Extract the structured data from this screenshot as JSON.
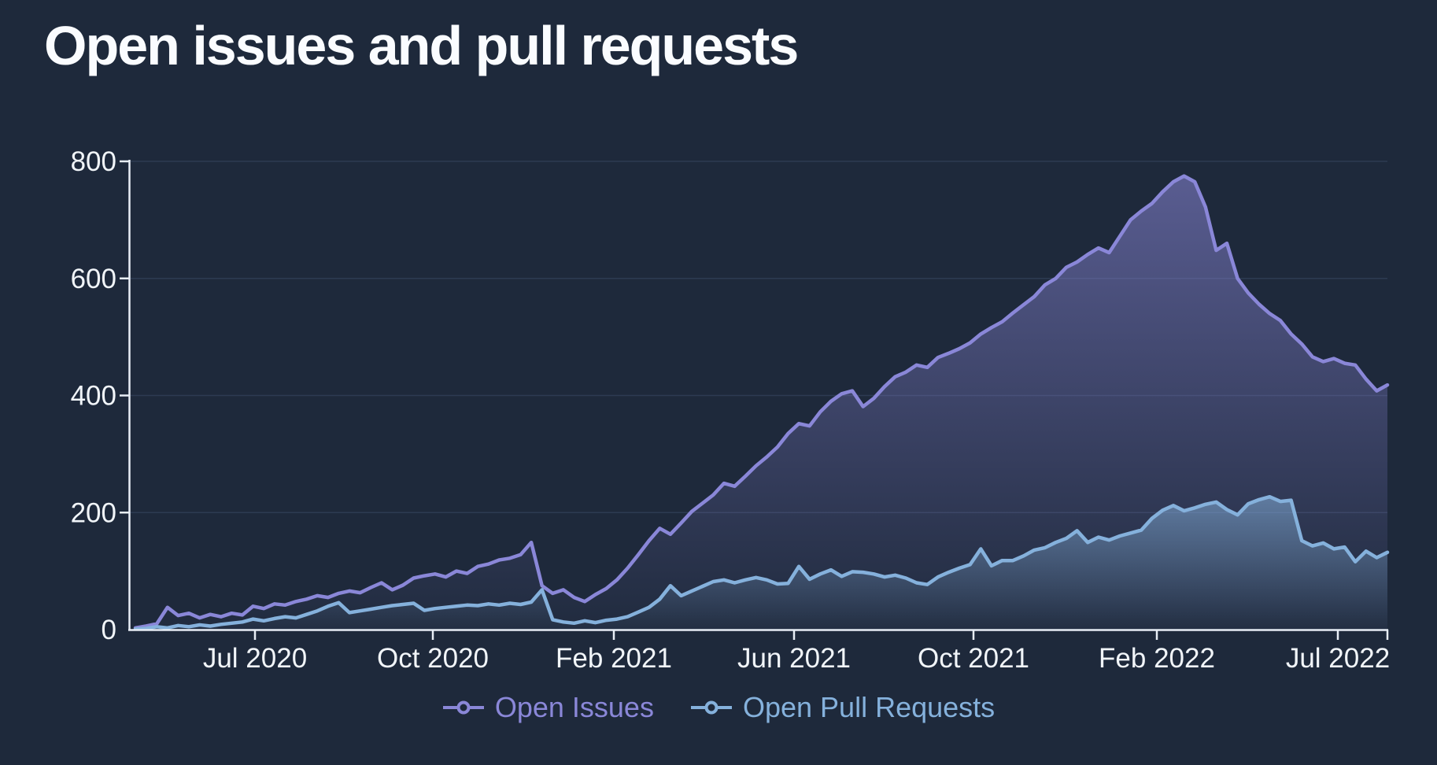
{
  "title": "Open issues and pull requests",
  "colors": {
    "background": "#1e293b",
    "grid": "#2d3b52",
    "axis": "#e8eef6",
    "tick_label": "#f1f5f9",
    "title_text": "#fafcff"
  },
  "chart_data": {
    "type": "area",
    "title": "Open issues and pull requests",
    "x_tick_labels": [
      "Jul 2020",
      "Oct 2020",
      "Feb 2021",
      "Jun 2021",
      "Oct 2021",
      "Feb 2022",
      "Jul 2022"
    ],
    "y_ticks": [
      0,
      200,
      400,
      600,
      800
    ],
    "ylim": [
      0,
      800
    ],
    "grid": "horizontal-only",
    "legend_position": "bottom",
    "x_range_note": "weekly points from May 2020 to Aug 2022",
    "series": [
      {
        "name": "Open Issues",
        "color": "#8a87d8",
        "values": [
          3,
          6,
          10,
          38,
          24,
          28,
          20,
          26,
          22,
          28,
          25,
          40,
          36,
          44,
          42,
          48,
          52,
          58,
          55,
          62,
          66,
          63,
          72,
          80,
          68,
          76,
          88,
          92,
          95,
          90,
          100,
          96,
          108,
          112,
          119,
          122,
          128,
          149,
          75,
          62,
          68,
          55,
          48,
          60,
          70,
          85,
          105,
          128,
          152,
          173,
          163,
          182,
          202,
          216,
          230,
          250,
          245,
          262,
          280,
          295,
          312,
          335,
          352,
          348,
          372,
          390,
          403,
          408,
          381,
          395,
          415,
          432,
          440,
          452,
          448,
          465,
          472,
          480,
          490,
          505,
          516,
          526,
          541,
          555,
          569,
          589,
          600,
          619,
          628,
          641,
          652,
          644,
          672,
          700,
          715,
          728,
          748,
          765,
          775,
          765,
          722,
          648,
          660,
          600,
          575,
          556,
          540,
          528,
          505,
          488,
          466,
          458,
          463,
          455,
          452,
          428,
          408,
          418
        ]
      },
      {
        "name": "Open Pull Requests",
        "color": "#85b1dc",
        "values": [
          1,
          2,
          5,
          3,
          7,
          5,
          8,
          6,
          9,
          11,
          13,
          18,
          15,
          19,
          22,
          20,
          26,
          32,
          40,
          46,
          29,
          32,
          35,
          38,
          41,
          43,
          45,
          33,
          36,
          38,
          40,
          42,
          41,
          44,
          42,
          45,
          43,
          47,
          68,
          17,
          13,
          11,
          15,
          12,
          16,
          18,
          22,
          30,
          38,
          52,
          75,
          58,
          66,
          74,
          82,
          85,
          80,
          85,
          89,
          85,
          78,
          79,
          108,
          86,
          95,
          102,
          91,
          99,
          98,
          95,
          90,
          93,
          88,
          80,
          77,
          90,
          98,
          105,
          111,
          138,
          109,
          118,
          118,
          126,
          136,
          140,
          149,
          156,
          169,
          149,
          158,
          153,
          160,
          165,
          170,
          190,
          204,
          212,
          203,
          208,
          214,
          218,
          205,
          196,
          215,
          222,
          227,
          219,
          221,
          152,
          143,
          148,
          138,
          141,
          116,
          134,
          123,
          132
        ]
      }
    ]
  },
  "legend": {
    "items": [
      {
        "label": "Open Issues"
      },
      {
        "label": "Open Pull Requests"
      }
    ]
  }
}
